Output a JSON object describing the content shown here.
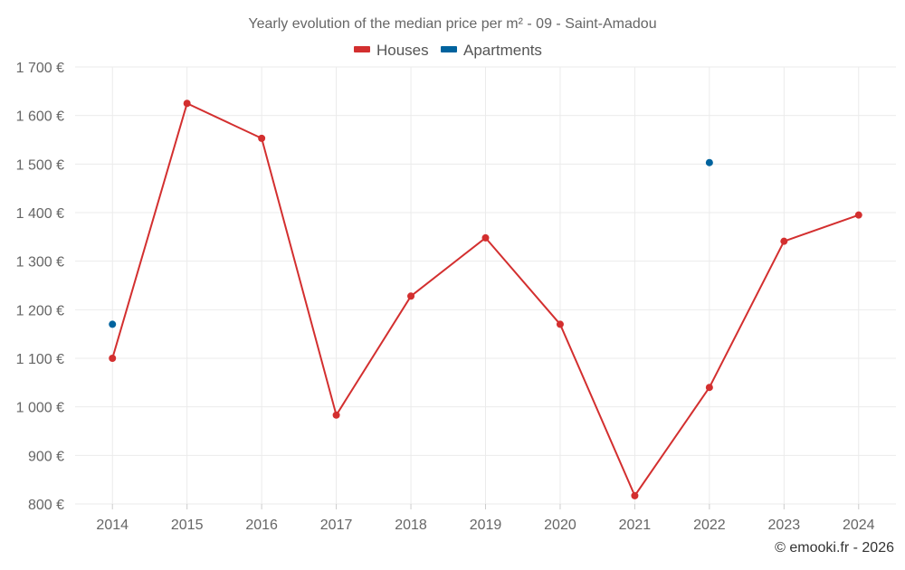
{
  "chart_data": {
    "type": "line",
    "title": "Yearly evolution of the median price per m² - 09 - Saint-Amadou",
    "xlabel": "",
    "ylabel": "",
    "x": [
      "2014",
      "2015",
      "2016",
      "2017",
      "2018",
      "2019",
      "2020",
      "2021",
      "2022",
      "2023",
      "2024"
    ],
    "ylim": [
      800,
      1700
    ],
    "yticks": [
      800,
      900,
      1000,
      1100,
      1200,
      1300,
      1400,
      1500,
      1600,
      1700
    ],
    "ytick_labels": [
      "800 €",
      "900 €",
      "1 000 €",
      "1 100 €",
      "1 200 €",
      "1 300 €",
      "1 400 €",
      "1 500 €",
      "1 600 €",
      "1 700 €"
    ],
    "grid": true,
    "legend_position": "top-center",
    "series": [
      {
        "name": "Houses",
        "color": "#d32f2f",
        "values": [
          1100,
          1625,
          1553,
          983,
          1228,
          1348,
          1170,
          817,
          1040,
          1341,
          1395
        ]
      },
      {
        "name": "Apartments",
        "color": "#00639e",
        "values": [
          1170,
          null,
          null,
          null,
          null,
          null,
          null,
          null,
          1503,
          null,
          null
        ]
      }
    ],
    "credit": "© emooki.fr - 2026"
  }
}
